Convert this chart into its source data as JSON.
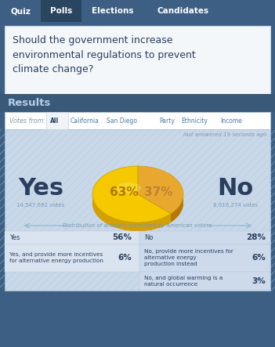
{
  "tab_labels": [
    "Quiz",
    "Polls",
    "Elections",
    "Candidates"
  ],
  "active_tab": "Polls",
  "question": "Should the government increase\nenvironmental regulations to prevent\nclimate change?",
  "results_label": "Results",
  "votes_from_label": "Votes from:",
  "filter_tabs": [
    "All",
    "California",
    "San Diego",
    "Party",
    "Ethnicity",
    "Income"
  ],
  "active_filter": "All",
  "last_answered": "last answered 19 seconds ago",
  "yes_label": "Yes",
  "no_label": "No",
  "yes_votes": "14,547,692 votes",
  "no_votes": "8,616,274 votes",
  "yes_pct": 63,
  "no_pct": 37,
  "yes_color_top": "#f5c800",
  "yes_color_side": "#d4a000",
  "no_color_top": "#e8a830",
  "no_color_side": "#b87800",
  "distribution_label": "Distribution of answers submitted by American voters.",
  "bg_main": "#3d5f84",
  "bg_question": "#f4f7fa",
  "bg_results_bar": "#3a5878",
  "bg_filter_row": "#eef2f7",
  "bg_chart": "#c8d8e8",
  "bg_table_l": "#dae4f0",
  "bg_table_r": "#ccdaec",
  "tab_bg": "#3d5f84",
  "tab_active_bg": "#2a4560",
  "text_dark": "#2a3f5e",
  "text_blue": "#4a78a8",
  "text_light": "#7898b8",
  "text_gold": "#b07800",
  "text_gold2": "#c08030"
}
